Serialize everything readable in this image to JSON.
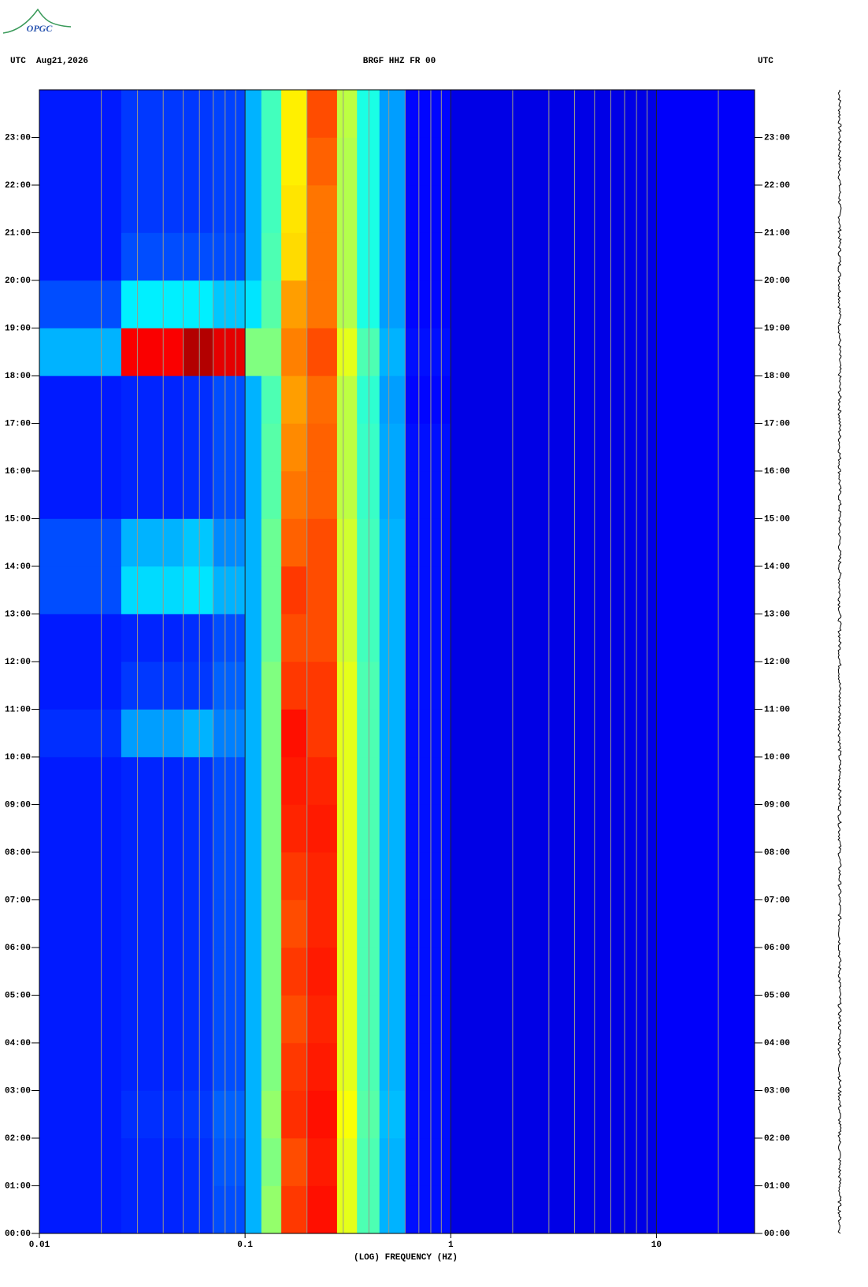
{
  "header": {
    "logo": "OPGC",
    "left": "UTC  Aug21,2026",
    "center": "BRGF HHZ FR 00",
    "right": "UTC"
  },
  "chart_data": {
    "type": "spectrogram",
    "x_label": "(LOG) FREQUENCY (HZ)",
    "log_x": true,
    "colormap": "jet",
    "clim": [
      0,
      1
    ],
    "xlim": [
      0.01,
      30
    ],
    "xticks": [
      0.01,
      0.1,
      1,
      10
    ],
    "x_minor_ticks": [
      0.02,
      0.03,
      0.04,
      0.05,
      0.06,
      0.07,
      0.08,
      0.09,
      0.2,
      0.3,
      0.4,
      0.5,
      0.6,
      0.7,
      0.8,
      0.9,
      2,
      3,
      4,
      5,
      6,
      7,
      8,
      9,
      20
    ],
    "ylim": [
      0,
      24
    ],
    "yticks": [
      {
        "value": 0,
        "label": "00:00"
      },
      {
        "value": 1,
        "label": "01:00"
      },
      {
        "value": 2,
        "label": "02:00"
      },
      {
        "value": 3,
        "label": "03:00"
      },
      {
        "value": 4,
        "label": "04:00"
      },
      {
        "value": 5,
        "label": "05:00"
      },
      {
        "value": 6,
        "label": "06:00"
      },
      {
        "value": 7,
        "label": "07:00"
      },
      {
        "value": 8,
        "label": "08:00"
      },
      {
        "value": 9,
        "label": "09:00"
      },
      {
        "value": 10,
        "label": "10:00"
      },
      {
        "value": 11,
        "label": "11:00"
      },
      {
        "value": 12,
        "label": "12:00"
      },
      {
        "value": 13,
        "label": "13:00"
      },
      {
        "value": 14,
        "label": "14:00"
      },
      {
        "value": 15,
        "label": "15:00"
      },
      {
        "value": 16,
        "label": "16:00"
      },
      {
        "value": 17,
        "label": "17:00"
      },
      {
        "value": 18,
        "label": "18:00"
      },
      {
        "value": 19,
        "label": "19:00"
      },
      {
        "value": 20,
        "label": "20:00"
      },
      {
        "value": 21,
        "label": "21:00"
      },
      {
        "value": 22,
        "label": "22:00"
      },
      {
        "value": 23,
        "label": "23:00"
      }
    ],
    "freq_edges": [
      0.01,
      0.025,
      0.05,
      0.07,
      0.1,
      0.12,
      0.15,
      0.2,
      0.28,
      0.35,
      0.45,
      0.6,
      1,
      3,
      10,
      30
    ],
    "time_edges": [
      0,
      1,
      2,
      3,
      4,
      5,
      6,
      7,
      8,
      9,
      10,
      11,
      12,
      13,
      14,
      15,
      16,
      17,
      18,
      19,
      20,
      21,
      22,
      23,
      24
    ],
    "power": [
      [
        0.15,
        0.16,
        0.17,
        0.2,
        0.3,
        0.52,
        0.82,
        0.86,
        0.6,
        0.45,
        0.3,
        0.14,
        0.1,
        0.1,
        0.12
      ],
      [
        0.15,
        0.16,
        0.17,
        0.21,
        0.3,
        0.5,
        0.8,
        0.85,
        0.6,
        0.45,
        0.3,
        0.14,
        0.1,
        0.1,
        0.12
      ],
      [
        0.15,
        0.17,
        0.18,
        0.22,
        0.3,
        0.52,
        0.83,
        0.86,
        0.62,
        0.46,
        0.31,
        0.14,
        0.1,
        0.1,
        0.12
      ],
      [
        0.15,
        0.16,
        0.17,
        0.2,
        0.3,
        0.5,
        0.82,
        0.85,
        0.6,
        0.45,
        0.3,
        0.14,
        0.1,
        0.1,
        0.12
      ],
      [
        0.15,
        0.16,
        0.17,
        0.2,
        0.3,
        0.5,
        0.8,
        0.84,
        0.6,
        0.45,
        0.3,
        0.14,
        0.1,
        0.1,
        0.12
      ],
      [
        0.15,
        0.16,
        0.17,
        0.2,
        0.3,
        0.5,
        0.82,
        0.85,
        0.6,
        0.45,
        0.3,
        0.14,
        0.1,
        0.1,
        0.12
      ],
      [
        0.15,
        0.16,
        0.17,
        0.2,
        0.3,
        0.5,
        0.8,
        0.84,
        0.6,
        0.45,
        0.3,
        0.14,
        0.1,
        0.1,
        0.12
      ],
      [
        0.15,
        0.16,
        0.17,
        0.2,
        0.3,
        0.5,
        0.82,
        0.84,
        0.6,
        0.45,
        0.3,
        0.14,
        0.1,
        0.1,
        0.12
      ],
      [
        0.15,
        0.16,
        0.17,
        0.2,
        0.3,
        0.5,
        0.84,
        0.85,
        0.6,
        0.45,
        0.3,
        0.14,
        0.1,
        0.1,
        0.12
      ],
      [
        0.15,
        0.16,
        0.17,
        0.2,
        0.3,
        0.5,
        0.85,
        0.84,
        0.6,
        0.45,
        0.3,
        0.14,
        0.1,
        0.1,
        0.12
      ],
      [
        0.17,
        0.28,
        0.3,
        0.25,
        0.3,
        0.5,
        0.86,
        0.82,
        0.6,
        0.45,
        0.3,
        0.14,
        0.1,
        0.1,
        0.12
      ],
      [
        0.15,
        0.18,
        0.18,
        0.22,
        0.3,
        0.5,
        0.82,
        0.82,
        0.6,
        0.45,
        0.3,
        0.14,
        0.1,
        0.1,
        0.12
      ],
      [
        0.15,
        0.16,
        0.17,
        0.2,
        0.3,
        0.48,
        0.8,
        0.8,
        0.58,
        0.44,
        0.3,
        0.14,
        0.1,
        0.1,
        0.12
      ],
      [
        0.2,
        0.34,
        0.35,
        0.3,
        0.3,
        0.48,
        0.82,
        0.8,
        0.58,
        0.44,
        0.3,
        0.14,
        0.1,
        0.1,
        0.12
      ],
      [
        0.2,
        0.3,
        0.32,
        0.26,
        0.3,
        0.48,
        0.78,
        0.8,
        0.58,
        0.44,
        0.3,
        0.14,
        0.1,
        0.1,
        0.12
      ],
      [
        0.15,
        0.16,
        0.17,
        0.2,
        0.3,
        0.46,
        0.76,
        0.78,
        0.56,
        0.43,
        0.29,
        0.14,
        0.1,
        0.1,
        0.12
      ],
      [
        0.15,
        0.16,
        0.17,
        0.2,
        0.3,
        0.46,
        0.74,
        0.78,
        0.56,
        0.43,
        0.29,
        0.14,
        0.1,
        0.1,
        0.12
      ],
      [
        0.15,
        0.16,
        0.17,
        0.2,
        0.3,
        0.45,
        0.72,
        0.77,
        0.56,
        0.42,
        0.28,
        0.13,
        0.1,
        0.1,
        0.12
      ],
      [
        0.3,
        0.88,
        0.95,
        0.9,
        0.5,
        0.5,
        0.75,
        0.8,
        0.6,
        0.45,
        0.3,
        0.14,
        0.1,
        0.1,
        0.12
      ],
      [
        0.2,
        0.36,
        0.36,
        0.32,
        0.35,
        0.46,
        0.72,
        0.76,
        0.55,
        0.4,
        0.28,
        0.13,
        0.1,
        0.1,
        0.12
      ],
      [
        0.15,
        0.2,
        0.2,
        0.2,
        0.3,
        0.45,
        0.66,
        0.76,
        0.55,
        0.4,
        0.28,
        0.13,
        0.1,
        0.1,
        0.12
      ],
      [
        0.15,
        0.18,
        0.18,
        0.19,
        0.3,
        0.44,
        0.65,
        0.76,
        0.55,
        0.4,
        0.28,
        0.13,
        0.1,
        0.1,
        0.12
      ],
      [
        0.15,
        0.18,
        0.18,
        0.19,
        0.3,
        0.44,
        0.64,
        0.78,
        0.55,
        0.4,
        0.28,
        0.13,
        0.1,
        0.1,
        0.12
      ],
      [
        0.15,
        0.18,
        0.18,
        0.19,
        0.3,
        0.44,
        0.64,
        0.8,
        0.56,
        0.4,
        0.28,
        0.13,
        0.1,
        0.1,
        0.12
      ]
    ]
  }
}
